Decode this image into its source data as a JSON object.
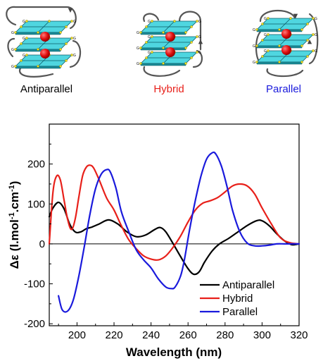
{
  "topologies": [
    {
      "label": "Antiparallel",
      "color": "#000000"
    },
    {
      "label": "Hybrid",
      "color": "#e8201a"
    },
    {
      "label": "Parallel",
      "color": "#1a1adc"
    }
  ],
  "g_letter": "G",
  "chart_data": {
    "type": "line",
    "title": "",
    "xlabel": "Wavelength (nm)",
    "ylabel_prefix": "Δε (l.mol",
    "ylabel_sup1": "-1",
    "ylabel_mid": ".cm",
    "ylabel_sup2": "-1",
    "ylabel_suffix": ")",
    "xlim": [
      185,
      320
    ],
    "ylim": [
      -205,
      300
    ],
    "xticks": [
      200,
      220,
      240,
      260,
      280,
      300,
      320
    ],
    "yticks": [
      -200,
      -100,
      0,
      100,
      200
    ],
    "zero_line": true,
    "legend_position": "bottom-right",
    "series": [
      {
        "name": "Antiparallel",
        "color": "#000000",
        "x": [
          185,
          187,
          190,
          193,
          196,
          199,
          202,
          205,
          208,
          212,
          217,
          222,
          227,
          232,
          237,
          242,
          245,
          248,
          252,
          256,
          260,
          263,
          266,
          269,
          273,
          277,
          282,
          287,
          292,
          297,
          300,
          304,
          308,
          312,
          316,
          320
        ],
        "y": [
          68,
          90,
          104,
          88,
          50,
          30,
          30,
          38,
          42,
          50,
          60,
          50,
          30,
          18,
          22,
          36,
          41,
          30,
          0,
          -32,
          -62,
          -76,
          -70,
          -45,
          -18,
          0,
          14,
          30,
          46,
          58,
          58,
          45,
          25,
          8,
          -2,
          0
        ]
      },
      {
        "name": "Hybrid",
        "color": "#e8201a",
        "x": [
          185,
          187,
          189,
          191,
          193,
          195,
          197,
          199,
          201,
          203,
          205,
          207,
          209,
          212,
          216,
          220,
          224,
          228,
          232,
          236,
          240,
          244,
          248,
          252,
          256,
          260,
          264,
          268,
          272,
          276,
          280,
          284,
          288,
          292,
          296,
          300,
          305,
          310,
          315,
          320
        ],
        "y": [
          0,
          130,
          170,
          160,
          110,
          60,
          36,
          62,
          118,
          170,
          192,
          197,
          190,
          160,
          115,
          85,
          45,
          10,
          -12,
          -30,
          -38,
          -40,
          -30,
          -8,
          20,
          55,
          85,
          102,
          108,
          116,
          130,
          145,
          150,
          145,
          125,
          90,
          50,
          15,
          3,
          0
        ]
      },
      {
        "name": "Parallel",
        "color": "#1a1adc",
        "x": [
          190,
          192,
          195,
          198,
          201,
          204,
          207,
          210,
          213,
          216,
          218,
          221,
          224,
          228,
          232,
          236,
          240,
          244,
          248,
          251,
          253,
          256,
          258,
          261,
          264,
          267,
          270,
          273,
          275,
          278,
          281,
          284,
          288,
          292,
          296,
          300,
          304,
          308,
          312,
          316,
          320
        ],
        "y": [
          -130,
          -165,
          -168,
          -140,
          -80,
          -5,
          75,
          138,
          174,
          186,
          180,
          140,
          80,
          30,
          -15,
          -40,
          -60,
          -88,
          -108,
          -112,
          -108,
          -80,
          -40,
          40,
          110,
          170,
          212,
          228,
          225,
          195,
          145,
          85,
          30,
          2,
          -5,
          -5,
          -3,
          0,
          0,
          0,
          0
        ]
      }
    ]
  }
}
